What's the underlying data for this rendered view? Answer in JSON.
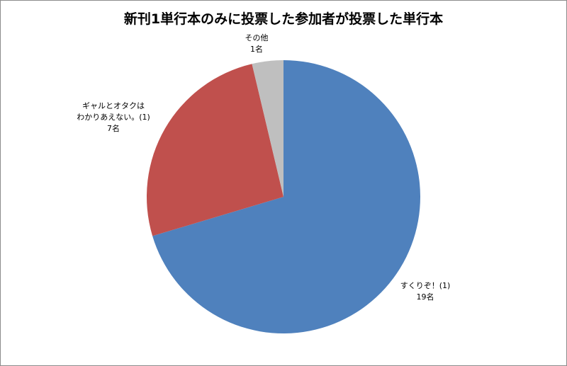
{
  "chart_data": {
    "type": "pie",
    "title": "新刊1単行本のみに投票した参加者が投票した単行本",
    "categories": [
      "すくりぞ！(1)",
      "ギャルとオタクは\nわかりあえない。(1)",
      "その他"
    ],
    "values": [
      19,
      7,
      1
    ],
    "value_labels": [
      "19名",
      "7名",
      "1名"
    ],
    "colors": [
      "#4f81bd",
      "#c0504d",
      "#bfbfbf"
    ]
  }
}
